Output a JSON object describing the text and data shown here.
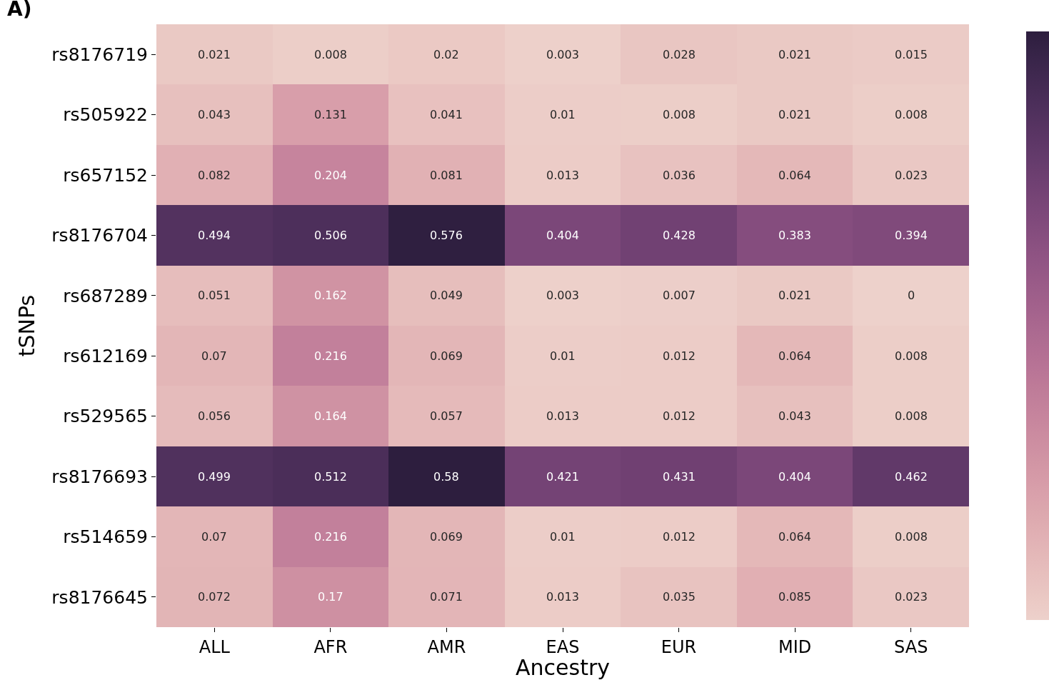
{
  "chart_data": {
    "type": "heatmap",
    "title": "A)",
    "xlabel": "Ancestry",
    "ylabel": "tSNPs",
    "data_labels": true,
    "categories": [
      "ALL",
      "AFR",
      "AMR",
      "EAS",
      "EUR",
      "MID",
      "SAS"
    ],
    "y_categories": [
      "rs8176719",
      "rs505922",
      "rs657152",
      "rs8176704",
      "rs687289",
      "rs612169",
      "rs529565",
      "rs8176693",
      "rs514659",
      "rs8176645"
    ],
    "cells": [
      [
        0.021,
        0.008,
        0.02,
        0.003,
        0.028,
        0.021,
        0.015
      ],
      [
        0.043,
        0.131,
        0.041,
        0.01,
        0.008,
        0.021,
        0.008
      ],
      [
        0.082,
        0.204,
        0.081,
        0.013,
        0.036,
        0.064,
        0.023
      ],
      [
        0.494,
        0.506,
        0.576,
        0.404,
        0.428,
        0.383,
        0.394
      ],
      [
        0.051,
        0.162,
        0.049,
        0.003,
        0.007,
        0.021,
        0
      ],
      [
        0.07,
        0.216,
        0.069,
        0.01,
        0.012,
        0.064,
        0.008
      ],
      [
        0.056,
        0.164,
        0.057,
        0.013,
        0.012,
        0.043,
        0.008
      ],
      [
        0.499,
        0.512,
        0.58,
        0.421,
        0.431,
        0.404,
        0.462
      ],
      [
        0.07,
        0.216,
        0.069,
        0.01,
        0.012,
        0.064,
        0.008
      ],
      [
        0.072,
        0.17,
        0.071,
        0.013,
        0.035,
        0.085,
        0.023
      ]
    ]
  }
}
